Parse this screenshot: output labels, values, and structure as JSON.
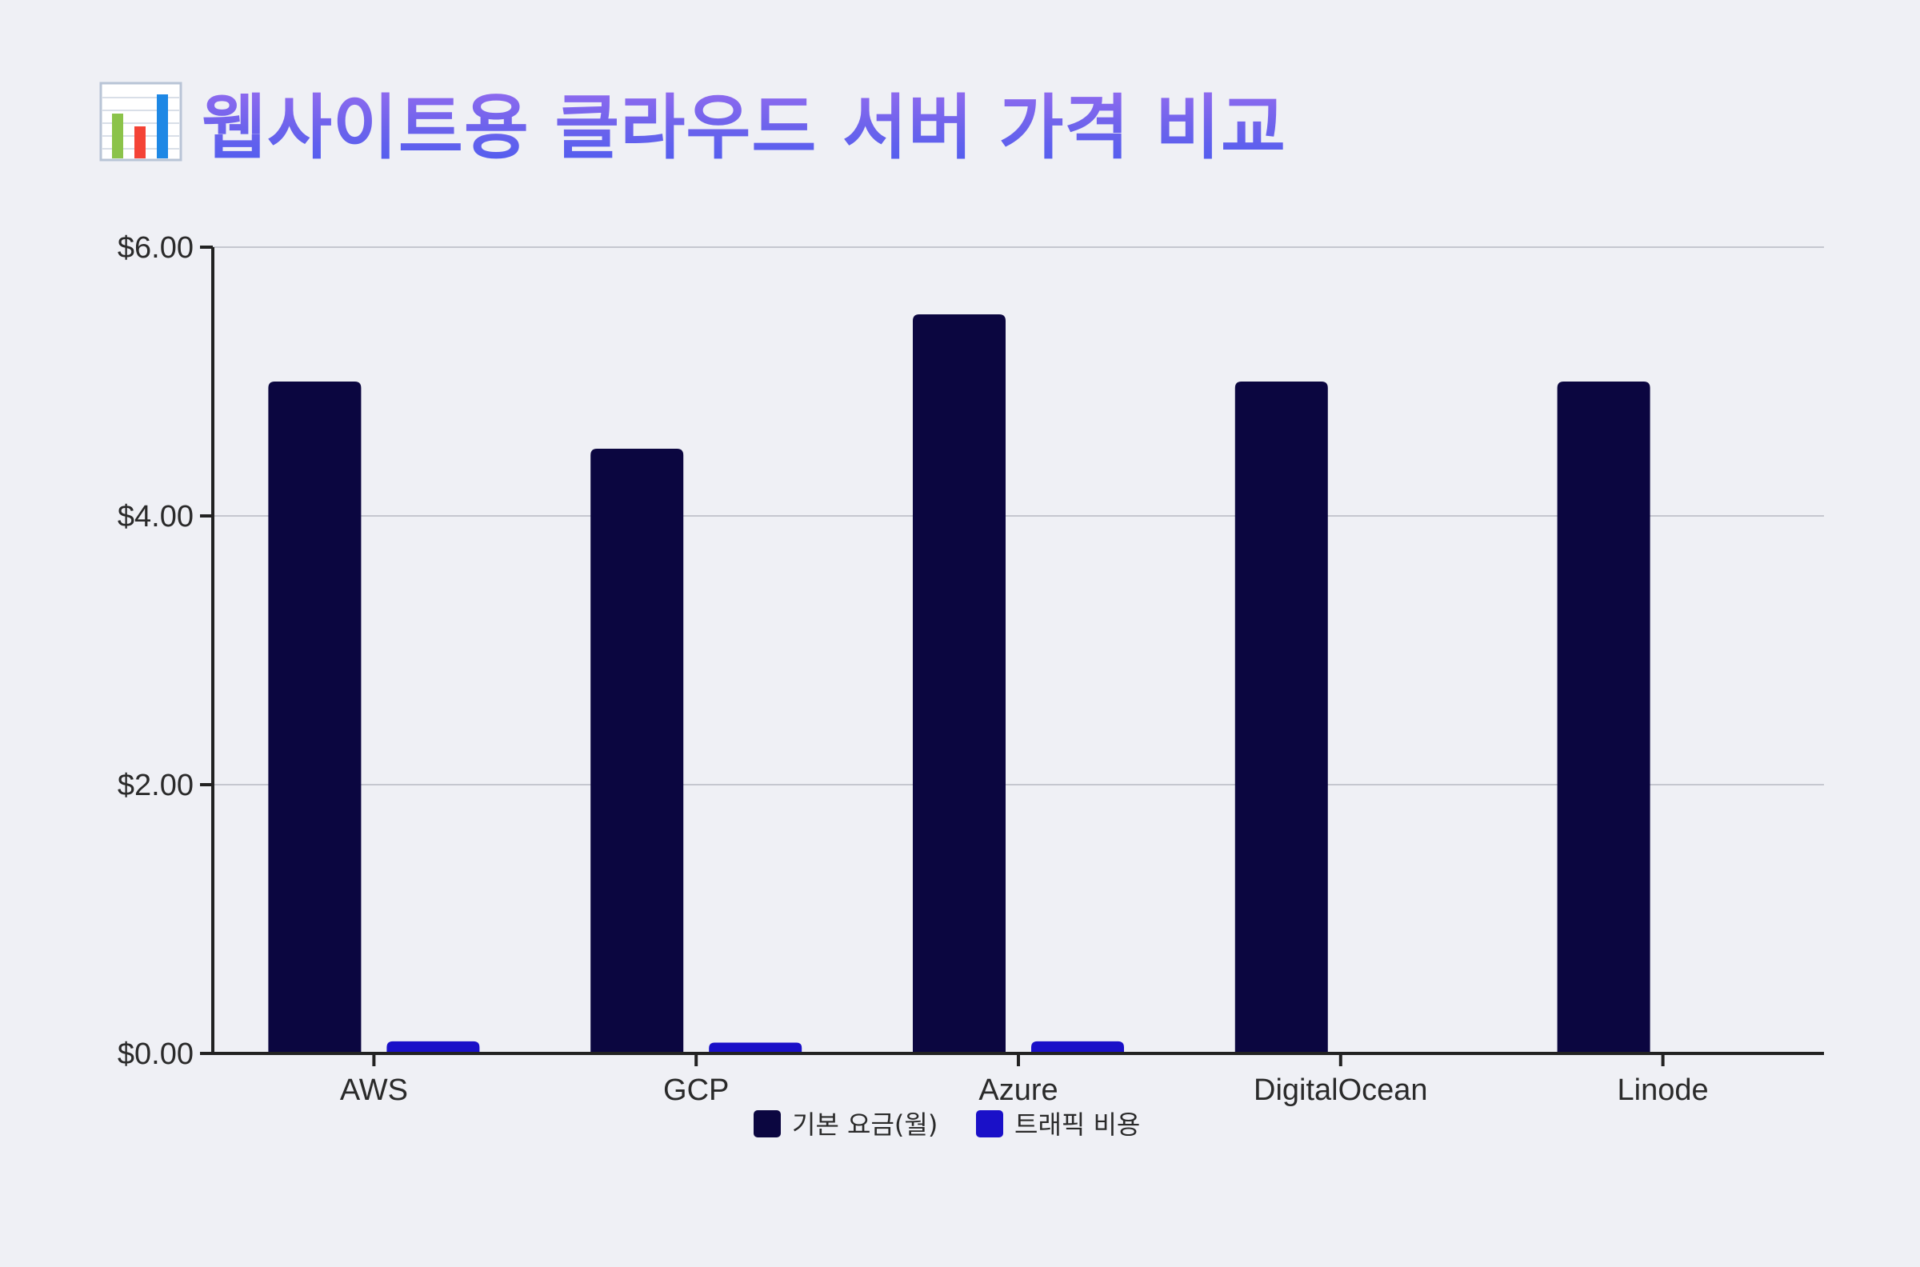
{
  "header": {
    "title": "웹사이트용 클라우드 서버 가격 비교",
    "icon": "bar-chart-icon"
  },
  "chart_data": {
    "type": "bar",
    "categories": [
      "AWS",
      "GCP",
      "Azure",
      "DigitalOcean",
      "Linode"
    ],
    "series": [
      {
        "name": "기본 요금(월)",
        "values": [
          5.0,
          4.5,
          5.5,
          5.0,
          5.0
        ],
        "color": "#0b0640"
      },
      {
        "name": "트래픽 비용",
        "values": [
          0.09,
          0.08,
          0.09,
          0.0,
          0.0
        ],
        "color": "#1a10c8"
      }
    ],
    "ylim": [
      0,
      6
    ],
    "yticks": [
      0,
      2,
      4,
      6
    ],
    "ytick_labels": [
      "$0.00",
      "$2.00",
      "$4.00",
      "$6.00"
    ],
    "grid": true,
    "legend_position": "bottom"
  },
  "colors": {
    "background": "#eff0f5",
    "axis": "#222222",
    "grid": "#c5c7cf"
  }
}
